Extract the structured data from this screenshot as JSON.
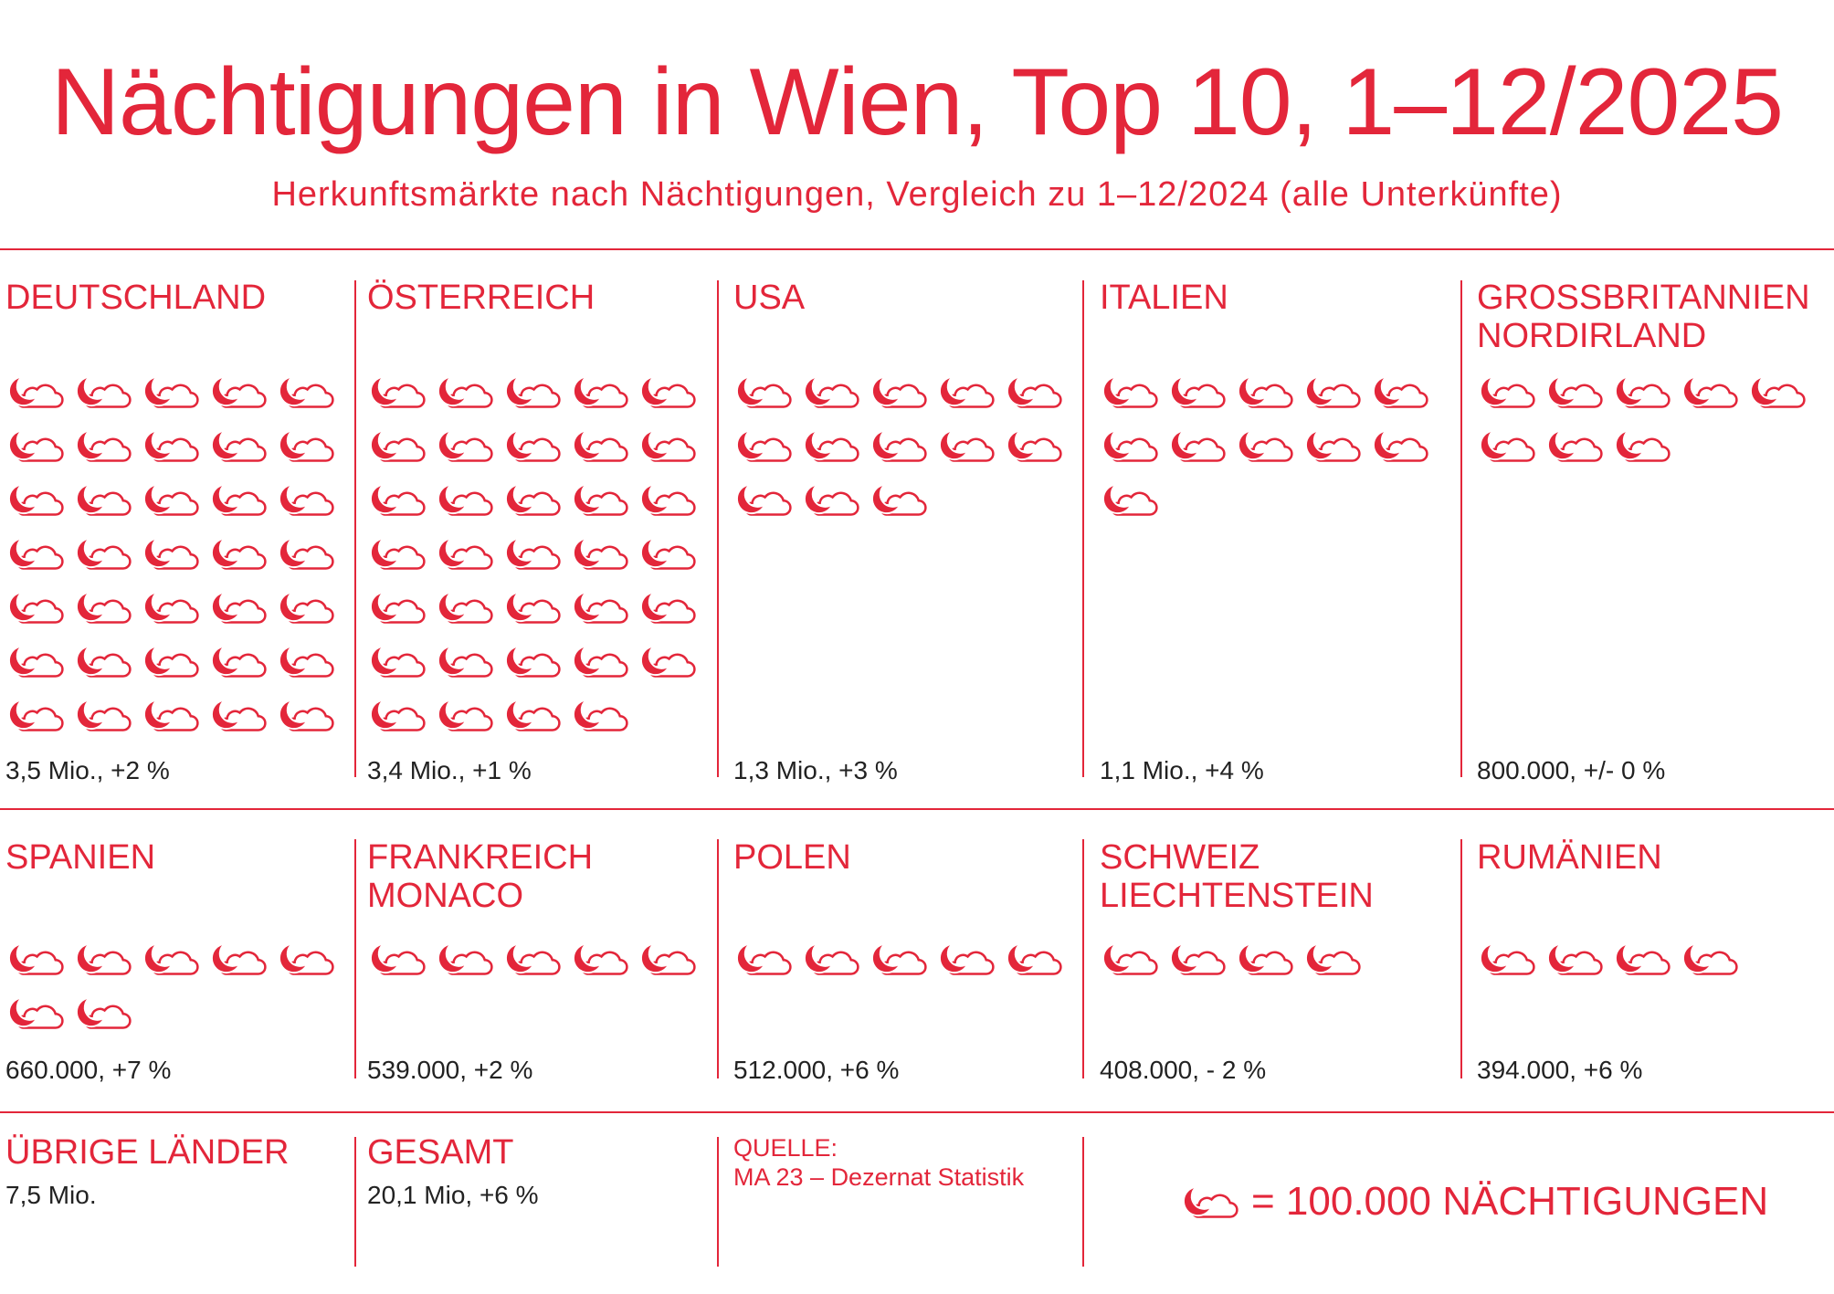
{
  "chart_data": {
    "type": "pictograph",
    "title": "Nächtigungen in Wien, Top 10, 1–12/2025",
    "subtitle": "Herkunftsmärkte nach Nächtigungen, Vergleich zu 1–12/2024 (alle Unterkünfte)",
    "categories": [
      "DEUTSCHLAND",
      "ÖSTERREICH",
      "USA",
      "ITALIEN",
      "GROSSBRITANNIEN\nNORDIRLAND",
      "SPANIEN",
      "FRANKREICH\nMONACO",
      "POLEN",
      "SCHWEIZ\nLIECHTENSTEIN",
      "RUMÄNIEN"
    ],
    "values": [
      35,
      34,
      13,
      11,
      8,
      7,
      5,
      5,
      4,
      4
    ],
    "stats": [
      "3,5 Mio., +2 %",
      "3,4 Mio., +1 %",
      "1,3 Mio., +3 %",
      "1,1 Mio., +4 %",
      "800.000, +/- 0 %",
      "660.000, +7 %",
      "539.000, +2 %",
      "512.000, +6 %",
      "408.000, - 2 %",
      "394.000, +6 %"
    ],
    "color": "#e3263a",
    "others": {
      "label": "ÜBRIGE LÄNDER",
      "value": "7,5 Mio."
    },
    "total": {
      "label": "GESAMT",
      "value": "20,1 Mio, +6 %"
    },
    "source": {
      "label": "QUELLE:",
      "text": "MA 23 – Dezernat Statistik"
    },
    "legend_label": "= 100.000 NÄCHTIGUNGEN"
  }
}
